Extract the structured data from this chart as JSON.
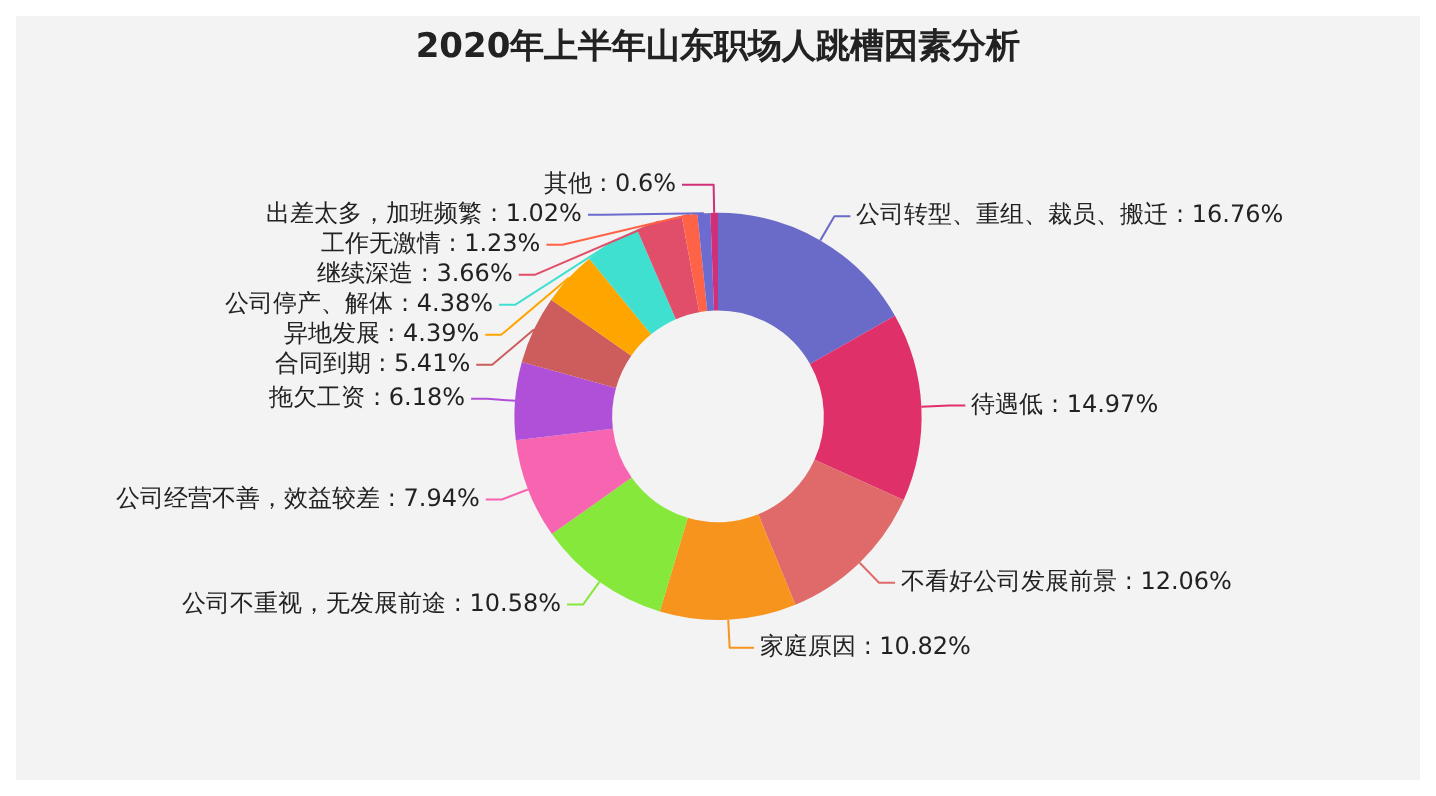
{
  "chart_data": {
    "type": "donut",
    "title": "2020年上半年山东职场人跳槽因素分析",
    "categories": [
      "公司转型、重组、裁员、搬迁",
      "待遇低",
      "不看好公司发展前景",
      "家庭原因",
      "公司不重视，无发展前途",
      "公司经营不善，效益较差",
      "拖欠工资",
      "合同到期",
      "异地发展",
      "公司停产、解体",
      "继续深造",
      "工作无激情",
      "出差太多，加班频繁",
      "其他"
    ],
    "values": [
      16.76,
      14.97,
      12.06,
      10.82,
      10.58,
      7.94,
      6.18,
      5.41,
      4.39,
      4.38,
      3.66,
      1.23,
      1.02,
      0.6
    ],
    "value_labels": [
      "16.76%",
      "14.97%",
      "12.06%",
      "10.82%",
      "10.58%",
      "7.94%",
      "6.18%",
      "5.41%",
      "4.39%",
      "4.38%",
      "3.66%",
      "1.23%",
      "1.02%",
      "0.6%"
    ],
    "colors": [
      "#6a6ac8",
      "#e0306a",
      "#e06a6a",
      "#f7941d",
      "#85e83a",
      "#f765b0",
      "#b050d8",
      "#cd5c5c",
      "#ffa500",
      "#40e0d0",
      "#e04e6a",
      "#ff6347",
      "#6b6bd0",
      "#d0307a"
    ],
    "legend": false
  }
}
